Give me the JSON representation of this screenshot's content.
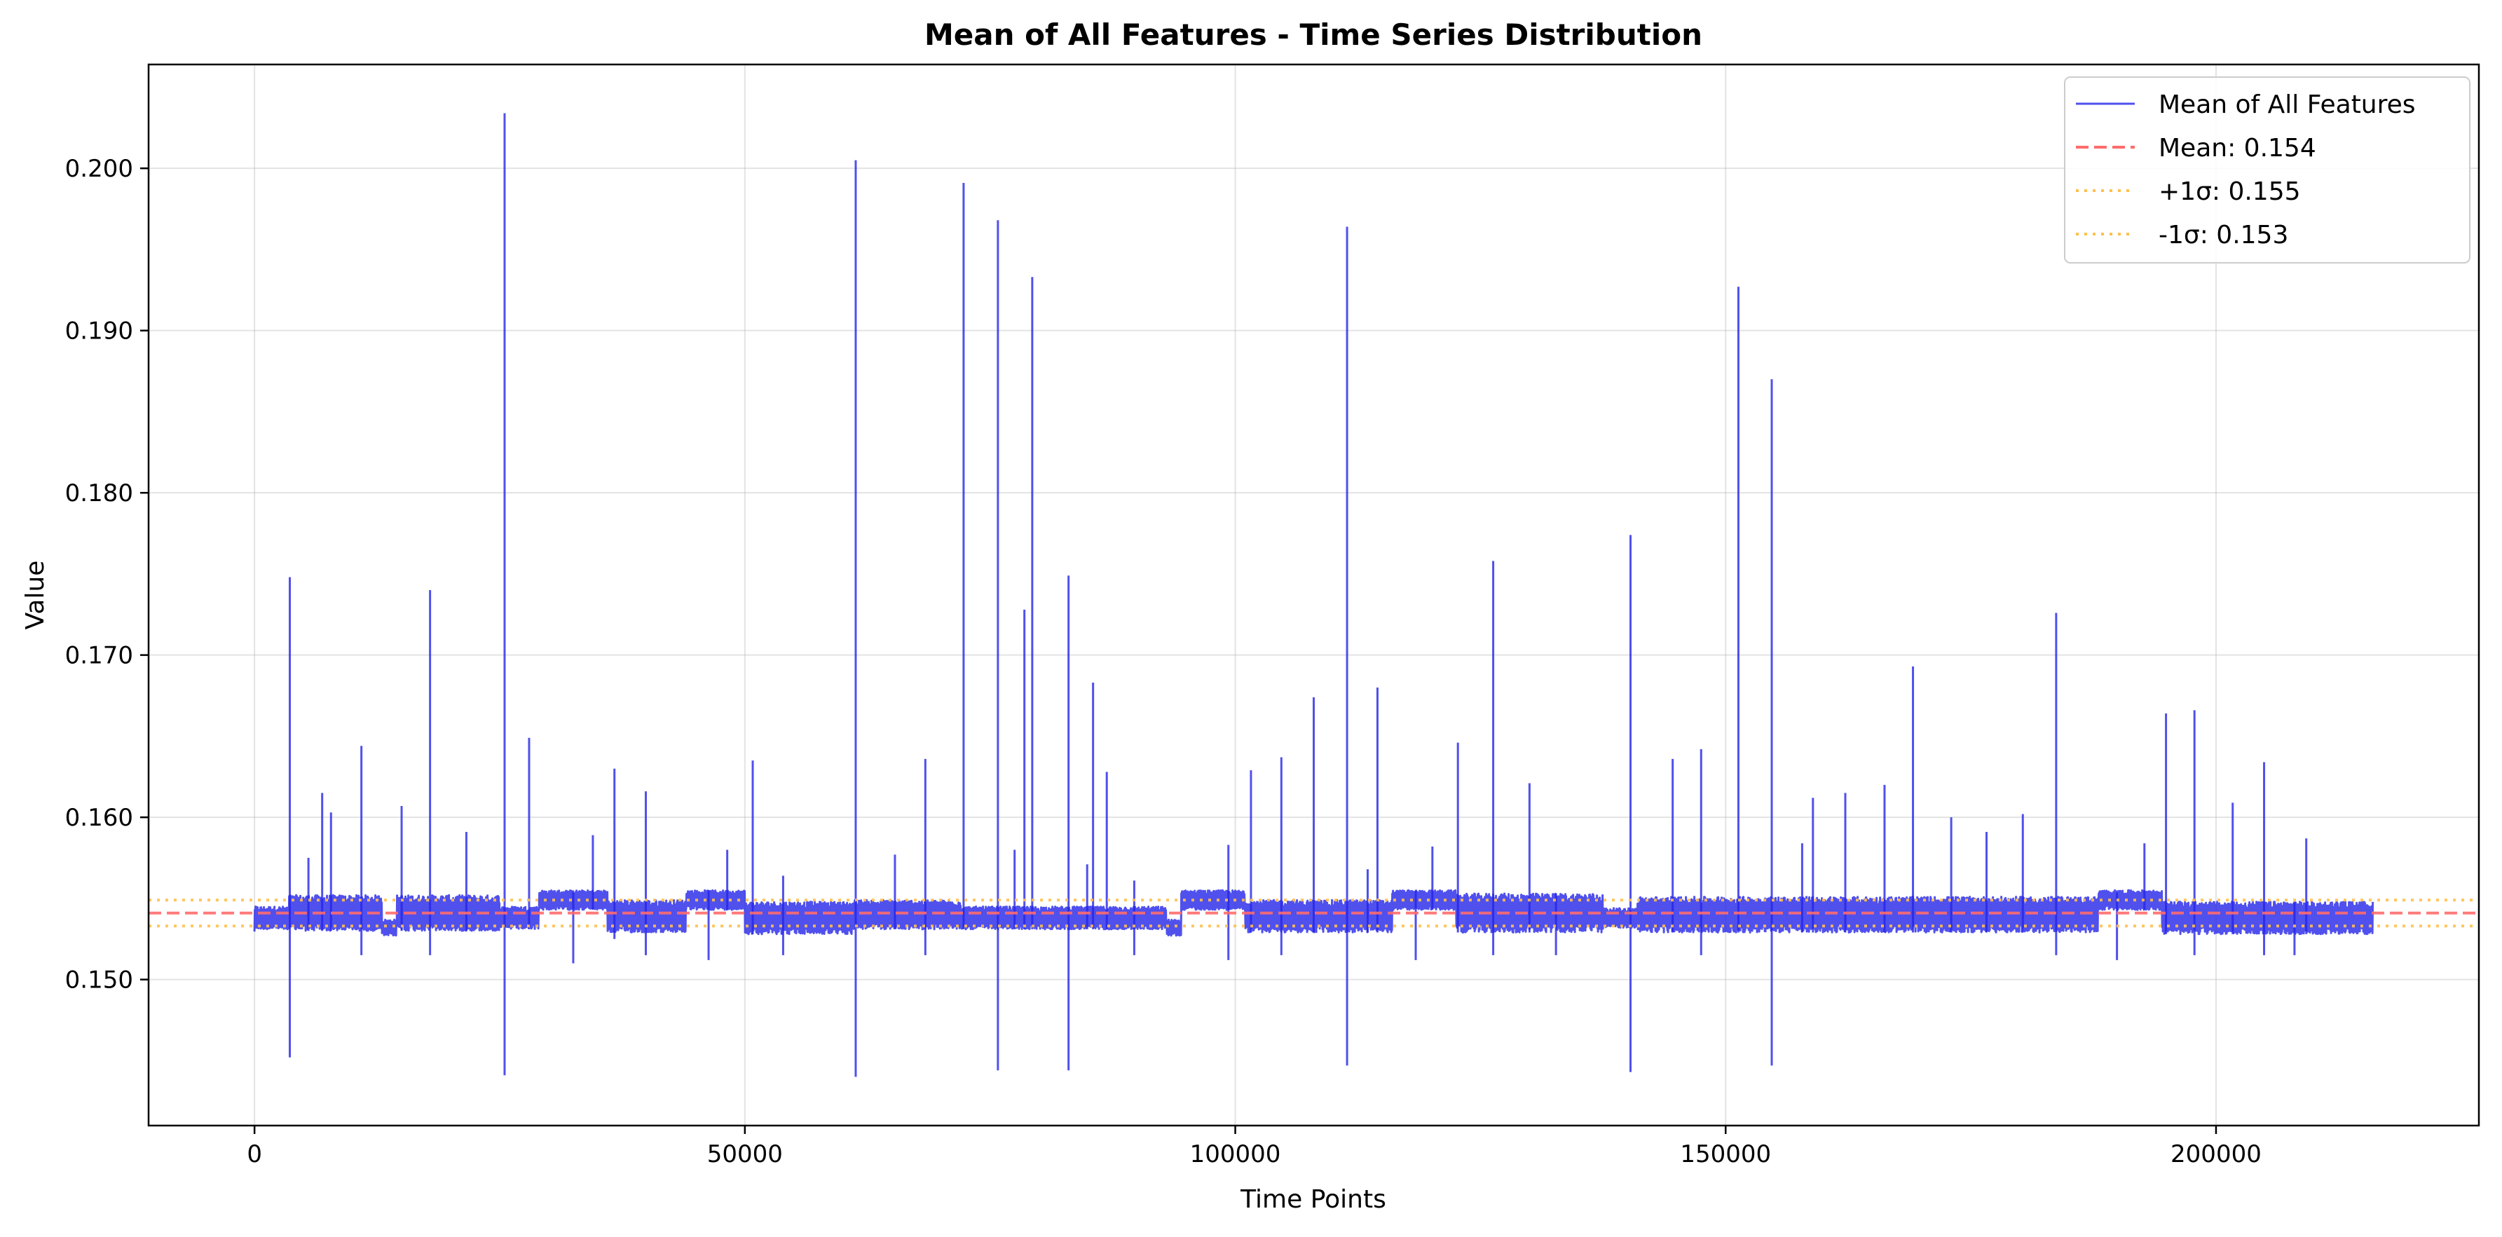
{
  "chart_data": {
    "type": "line",
    "title": "Mean of All Features - Time Series Distribution",
    "xlabel": "Time Points",
    "ylabel": "Value",
    "xlim": [
      -10800,
      226800
    ],
    "ylim": [
      0.141,
      0.2064
    ],
    "x_ticks": [
      0,
      50000,
      100000,
      150000,
      200000
    ],
    "x_tick_labels": [
      "0",
      "50000",
      "100000",
      "150000",
      "200000"
    ],
    "y_ticks": [
      0.15,
      0.16,
      0.17,
      0.18,
      0.19,
      0.2
    ],
    "y_tick_labels": [
      "0.150",
      "0.160",
      "0.170",
      "0.180",
      "0.190",
      "0.200"
    ],
    "grid": true,
    "legend_position": "top-right",
    "colors": {
      "series": "#2424e8",
      "mean": "#ff6b6b",
      "sigma": "#ffc04d"
    },
    "x_range": [
      0,
      216000
    ],
    "series": [
      {
        "name": "Mean of All Features",
        "style": "solid",
        "segments": [
          {
            "x0": 0,
            "x1": 3500,
            "center": 0.1538,
            "half_band": 0.0007
          },
          {
            "x0": 3500,
            "x1": 13000,
            "center": 0.1541,
            "half_band": 0.0011
          },
          {
            "x0": 13000,
            "x1": 14500,
            "center": 0.1532,
            "half_band": 0.0005
          },
          {
            "x0": 14500,
            "x1": 25000,
            "center": 0.1541,
            "half_band": 0.0011
          },
          {
            "x0": 25000,
            "x1": 29000,
            "center": 0.1538,
            "half_band": 0.0007
          },
          {
            "x0": 29000,
            "x1": 36000,
            "center": 0.1549,
            "half_band": 0.0006
          },
          {
            "x0": 36000,
            "x1": 44000,
            "center": 0.1539,
            "half_band": 0.001
          },
          {
            "x0": 44000,
            "x1": 50000,
            "center": 0.1549,
            "half_band": 0.0006
          },
          {
            "x0": 50000,
            "x1": 61000,
            "center": 0.1538,
            "half_band": 0.001
          },
          {
            "x0": 61000,
            "x1": 72000,
            "center": 0.154,
            "half_band": 0.0009
          },
          {
            "x0": 72000,
            "x1": 93000,
            "center": 0.1538,
            "half_band": 0.0007
          },
          {
            "x0": 93000,
            "x1": 94500,
            "center": 0.1532,
            "half_band": 0.0005
          },
          {
            "x0": 94500,
            "x1": 101000,
            "center": 0.1549,
            "half_band": 0.0006
          },
          {
            "x0": 101000,
            "x1": 116000,
            "center": 0.1539,
            "half_band": 0.001
          },
          {
            "x0": 116000,
            "x1": 122500,
            "center": 0.1549,
            "half_band": 0.0006
          },
          {
            "x0": 122500,
            "x1": 137500,
            "center": 0.1541,
            "half_band": 0.0012
          },
          {
            "x0": 137500,
            "x1": 141000,
            "center": 0.1538,
            "half_band": 0.0006
          },
          {
            "x0": 141000,
            "x1": 188000,
            "center": 0.154,
            "half_band": 0.0011
          },
          {
            "x0": 188000,
            "x1": 194500,
            "center": 0.1549,
            "half_band": 0.0006
          },
          {
            "x0": 194500,
            "x1": 216000,
            "center": 0.1538,
            "half_band": 0.001
          }
        ],
        "spikes": [
          {
            "x": 3600,
            "high": 0.1748,
            "low": 0.1452
          },
          {
            "x": 5500,
            "high": 0.1575,
            "low": null
          },
          {
            "x": 6900,
            "high": 0.1615,
            "low": null
          },
          {
            "x": 7800,
            "high": 0.1603,
            "low": null
          },
          {
            "x": 10900,
            "high": 0.1644,
            "low": 0.1515
          },
          {
            "x": 15000,
            "high": 0.1607,
            "low": null
          },
          {
            "x": 17900,
            "high": 0.174,
            "low": 0.1515
          },
          {
            "x": 21600,
            "high": 0.1591,
            "low": null
          },
          {
            "x": 25500,
            "high": 0.2034,
            "low": 0.1441
          },
          {
            "x": 28000,
            "high": 0.1649,
            "low": null
          },
          {
            "x": 32500,
            "high": null,
            "low": 0.151
          },
          {
            "x": 34500,
            "high": 0.1589,
            "low": null
          },
          {
            "x": 36700,
            "high": 0.163,
            "low": 0.1525
          },
          {
            "x": 39900,
            "high": 0.1616,
            "low": 0.1515
          },
          {
            "x": 46300,
            "high": null,
            "low": 0.1512
          },
          {
            "x": 48200,
            "high": 0.158,
            "low": null
          },
          {
            "x": 50800,
            "high": 0.1635,
            "low": null
          },
          {
            "x": 53900,
            "high": 0.1564,
            "low": 0.1515
          },
          {
            "x": 61300,
            "high": 0.2005,
            "low": 0.144
          },
          {
            "x": 65300,
            "high": 0.1577,
            "low": null
          },
          {
            "x": 68400,
            "high": 0.1636,
            "low": 0.1515
          },
          {
            "x": 72300,
            "high": 0.1991,
            "low": null
          },
          {
            "x": 75800,
            "high": 0.1968,
            "low": 0.1444
          },
          {
            "x": 77500,
            "high": 0.158,
            "low": null
          },
          {
            "x": 78500,
            "high": 0.1728,
            "low": null
          },
          {
            "x": 79300,
            "high": 0.1933,
            "low": null
          },
          {
            "x": 83000,
            "high": 0.1749,
            "low": 0.1444
          },
          {
            "x": 84900,
            "high": 0.1571,
            "low": null
          },
          {
            "x": 85500,
            "high": 0.1683,
            "low": null
          },
          {
            "x": 86900,
            "high": 0.1628,
            "low": null
          },
          {
            "x": 89700,
            "high": 0.1561,
            "low": 0.1515
          },
          {
            "x": 99300,
            "high": 0.1583,
            "low": 0.1512
          },
          {
            "x": 101600,
            "high": 0.1629,
            "low": null
          },
          {
            "x": 104700,
            "high": 0.1637,
            "low": 0.1515
          },
          {
            "x": 108000,
            "high": 0.1674,
            "low": null
          },
          {
            "x": 111400,
            "high": 0.1964,
            "low": 0.1447
          },
          {
            "x": 113500,
            "high": 0.1568,
            "low": null
          },
          {
            "x": 114500,
            "high": 0.168,
            "low": null
          },
          {
            "x": 118400,
            "high": null,
            "low": 0.1512
          },
          {
            "x": 120100,
            "high": 0.1582,
            "low": null
          },
          {
            "x": 122700,
            "high": 0.1646,
            "low": null
          },
          {
            "x": 126300,
            "high": 0.1758,
            "low": 0.1515
          },
          {
            "x": 130000,
            "high": 0.1621,
            "low": null
          },
          {
            "x": 132700,
            "high": null,
            "low": 0.1515
          },
          {
            "x": 140300,
            "high": 0.1774,
            "low": 0.1443
          },
          {
            "x": 144600,
            "high": 0.1636,
            "low": null
          },
          {
            "x": 147500,
            "high": 0.1642,
            "low": 0.1515
          },
          {
            "x": 151300,
            "high": 0.1927,
            "low": null
          },
          {
            "x": 154700,
            "high": 0.187,
            "low": 0.1447
          },
          {
            "x": 157800,
            "high": 0.1584,
            "low": null
          },
          {
            "x": 158900,
            "high": 0.1612,
            "low": null
          },
          {
            "x": 162200,
            "high": 0.1615,
            "low": null
          },
          {
            "x": 166200,
            "high": 0.162,
            "low": null
          },
          {
            "x": 169100,
            "high": 0.1693,
            "low": null
          },
          {
            "x": 173000,
            "high": 0.16,
            "low": null
          },
          {
            "x": 176600,
            "high": 0.1591,
            "low": null
          },
          {
            "x": 180300,
            "high": 0.1602,
            "low": null
          },
          {
            "x": 183700,
            "high": 0.1726,
            "low": 0.1515
          },
          {
            "x": 189900,
            "high": null,
            "low": 0.1512
          },
          {
            "x": 192700,
            "high": 0.1584,
            "low": null
          },
          {
            "x": 194900,
            "high": 0.1664,
            "low": null
          },
          {
            "x": 197800,
            "high": 0.1666,
            "low": 0.1515
          },
          {
            "x": 201700,
            "high": 0.1609,
            "low": null
          },
          {
            "x": 204900,
            "high": 0.1634,
            "low": 0.1515
          },
          {
            "x": 208000,
            "high": null,
            "low": 0.1515
          },
          {
            "x": 209200,
            "high": 0.1587,
            "low": null
          }
        ]
      },
      {
        "name": "Mean: 0.154",
        "style": "dashed",
        "value": 0.1541
      },
      {
        "name": "+1σ: 0.155",
        "style": "dotted",
        "value": 0.1549
      },
      {
        "name": "-1σ: 0.153",
        "style": "dotted",
        "value": 0.1533
      }
    ]
  }
}
